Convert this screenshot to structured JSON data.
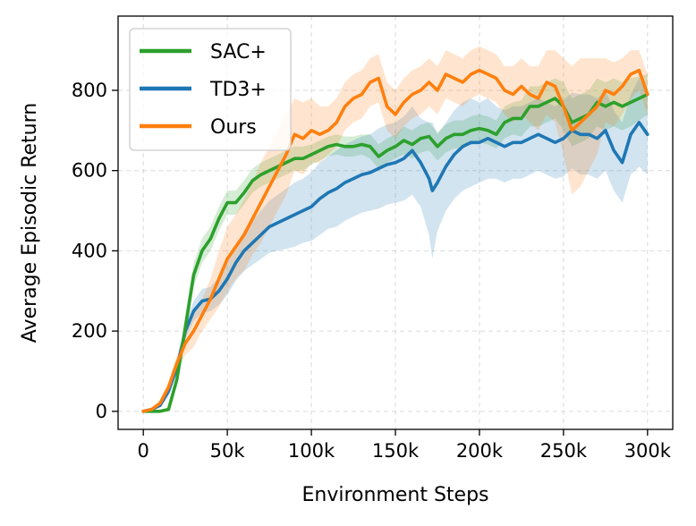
{
  "chart_data": {
    "type": "line",
    "title": "",
    "xlabel": "Environment Steps",
    "ylabel": "Average Episodic Return",
    "xlim": [
      -15000,
      315000
    ],
    "ylim": [
      -45,
      985
    ],
    "xticks": [
      0,
      50000,
      100000,
      150000,
      200000,
      250000,
      300000
    ],
    "xtick_labels": [
      "0",
      "50k",
      "100k",
      "150k",
      "200k",
      "250k",
      "300k"
    ],
    "yticks": [
      0,
      200,
      400,
      600,
      800
    ],
    "ytick_labels": [
      "0",
      "200",
      "400",
      "600",
      "800"
    ],
    "grid": true,
    "legend_position": "upper-left",
    "series": [
      {
        "name": "SAC+",
        "color": "#2ca02c",
        "x": [
          0,
          5000,
          10000,
          15000,
          20000,
          25000,
          30000,
          35000,
          40000,
          45000,
          50000,
          55000,
          60000,
          65000,
          70000,
          75000,
          80000,
          85000,
          90000,
          95000,
          100000,
          105000,
          110000,
          115000,
          120000,
          125000,
          130000,
          135000,
          140000,
          145000,
          150000,
          155000,
          160000,
          165000,
          170000,
          175000,
          180000,
          185000,
          190000,
          195000,
          200000,
          205000,
          210000,
          215000,
          220000,
          225000,
          230000,
          235000,
          240000,
          245000,
          250000,
          255000,
          260000,
          265000,
          270000,
          275000,
          280000,
          285000,
          290000,
          295000,
          300000
        ],
        "y": [
          0,
          0,
          0,
          5,
          80,
          210,
          340,
          400,
          430,
          480,
          520,
          520,
          545,
          575,
          590,
          600,
          610,
          620,
          630,
          630,
          640,
          650,
          660,
          665,
          660,
          660,
          665,
          660,
          635,
          650,
          660,
          675,
          665,
          680,
          685,
          660,
          680,
          690,
          690,
          700,
          705,
          700,
          690,
          720,
          730,
          730,
          760,
          760,
          770,
          780,
          760,
          720,
          730,
          740,
          770,
          760,
          770,
          760,
          770,
          780,
          790
        ],
        "lower": [
          0,
          0,
          0,
          2,
          65,
          180,
          310,
          370,
          400,
          450,
          490,
          490,
          515,
          545,
          560,
          570,
          580,
          590,
          600,
          600,
          615,
          625,
          635,
          640,
          635,
          635,
          640,
          630,
          605,
          620,
          630,
          640,
          630,
          645,
          650,
          625,
          645,
          655,
          655,
          665,
          670,
          665,
          655,
          680,
          690,
          685,
          710,
          710,
          720,
          730,
          700,
          660,
          670,
          680,
          710,
          700,
          710,
          700,
          710,
          725,
          740
        ],
        "upper": [
          0,
          0,
          0,
          8,
          95,
          240,
          370,
          430,
          460,
          510,
          550,
          550,
          575,
          605,
          620,
          630,
          640,
          650,
          660,
          660,
          665,
          675,
          685,
          690,
          685,
          685,
          690,
          690,
          665,
          680,
          690,
          710,
          700,
          715,
          720,
          695,
          715,
          725,
          725,
          735,
          740,
          735,
          725,
          760,
          770,
          775,
          810,
          810,
          820,
          830,
          820,
          780,
          790,
          800,
          830,
          820,
          830,
          820,
          830,
          835,
          840
        ]
      },
      {
        "name": "TD3+",
        "color": "#1f77b4",
        "x": [
          0,
          5000,
          10000,
          15000,
          20000,
          25000,
          30000,
          35000,
          40000,
          45000,
          50000,
          55000,
          60000,
          65000,
          70000,
          75000,
          80000,
          85000,
          90000,
          95000,
          100000,
          105000,
          110000,
          115000,
          120000,
          125000,
          130000,
          135000,
          140000,
          145000,
          150000,
          155000,
          160000,
          165000,
          170000,
          172000,
          175000,
          180000,
          185000,
          190000,
          195000,
          200000,
          205000,
          210000,
          215000,
          220000,
          225000,
          230000,
          235000,
          240000,
          245000,
          250000,
          255000,
          260000,
          265000,
          270000,
          275000,
          280000,
          285000,
          290000,
          295000,
          300000
        ],
        "y": [
          0,
          5,
          15,
          50,
          110,
          200,
          250,
          275,
          280,
          300,
          330,
          370,
          400,
          420,
          440,
          460,
          470,
          480,
          490,
          500,
          510,
          530,
          545,
          555,
          570,
          580,
          590,
          595,
          605,
          615,
          620,
          630,
          650,
          620,
          580,
          550,
          570,
          610,
          640,
          660,
          670,
          670,
          680,
          670,
          660,
          670,
          670,
          680,
          690,
          680,
          670,
          680,
          700,
          690,
          690,
          680,
          700,
          650,
          620,
          690,
          720,
          690
        ],
        "lower": [
          0,
          2,
          10,
          40,
          95,
          180,
          225,
          245,
          250,
          265,
          290,
          325,
          350,
          365,
          380,
          395,
          400,
          405,
          410,
          420,
          425,
          440,
          455,
          460,
          475,
          485,
          495,
          500,
          505,
          515,
          520,
          525,
          540,
          510,
          440,
          380,
          450,
          500,
          530,
          550,
          560,
          570,
          580,
          580,
          570,
          580,
          580,
          590,
          600,
          590,
          580,
          585,
          605,
          590,
          590,
          580,
          600,
          550,
          520,
          590,
          610,
          590
        ],
        "upper": [
          0,
          8,
          20,
          60,
          125,
          220,
          275,
          305,
          310,
          335,
          370,
          415,
          450,
          475,
          500,
          525,
          540,
          555,
          570,
          580,
          595,
          620,
          635,
          650,
          665,
          675,
          685,
          690,
          705,
          715,
          720,
          735,
          760,
          730,
          720,
          720,
          690,
          720,
          750,
          770,
          780,
          770,
          780,
          760,
          750,
          760,
          760,
          770,
          780,
          770,
          760,
          775,
          795,
          790,
          790,
          780,
          800,
          750,
          720,
          790,
          830,
          790
        ]
      },
      {
        "name": "Ours",
        "color": "#ff7f0e",
        "x": [
          0,
          5000,
          10000,
          15000,
          20000,
          25000,
          30000,
          35000,
          40000,
          45000,
          50000,
          55000,
          60000,
          65000,
          70000,
          75000,
          80000,
          85000,
          90000,
          95000,
          100000,
          105000,
          110000,
          115000,
          120000,
          125000,
          130000,
          135000,
          140000,
          145000,
          150000,
          155000,
          160000,
          165000,
          170000,
          175000,
          180000,
          185000,
          190000,
          195000,
          200000,
          205000,
          210000,
          215000,
          220000,
          225000,
          230000,
          235000,
          240000,
          245000,
          250000,
          255000,
          260000,
          265000,
          270000,
          275000,
          280000,
          285000,
          290000,
          295000,
          300000
        ],
        "y": [
          0,
          5,
          20,
          60,
          120,
          170,
          200,
          240,
          280,
          330,
          380,
          410,
          440,
          480,
          520,
          560,
          600,
          640,
          690,
          680,
          700,
          690,
          700,
          720,
          760,
          780,
          790,
          820,
          830,
          760,
          740,
          770,
          790,
          800,
          820,
          800,
          840,
          830,
          820,
          840,
          850,
          840,
          830,
          800,
          790,
          810,
          790,
          780,
          820,
          810,
          760,
          700,
          720,
          740,
          760,
          800,
          790,
          810,
          840,
          850,
          790
        ],
        "lower": [
          0,
          2,
          10,
          45,
          100,
          140,
          160,
          200,
          230,
          260,
          300,
          330,
          350,
          390,
          420,
          460,
          500,
          540,
          600,
          590,
          620,
          620,
          640,
          660,
          700,
          720,
          730,
          760,
          770,
          700,
          680,
          710,
          730,
          740,
          760,
          740,
          780,
          770,
          760,
          780,
          790,
          780,
          770,
          740,
          720,
          740,
          720,
          700,
          740,
          720,
          640,
          540,
          560,
          600,
          640,
          720,
          710,
          740,
          780,
          800,
          740
        ],
        "upper": [
          0,
          8,
          30,
          75,
          140,
          200,
          240,
          280,
          330,
          400,
          460,
          490,
          530,
          570,
          620,
          660,
          700,
          740,
          780,
          770,
          780,
          760,
          760,
          780,
          820,
          840,
          850,
          880,
          890,
          820,
          800,
          830,
          850,
          860,
          880,
          860,
          900,
          890,
          880,
          900,
          910,
          900,
          890,
          860,
          860,
          880,
          860,
          860,
          900,
          900,
          880,
          860,
          880,
          880,
          880,
          880,
          870,
          880,
          900,
          900,
          840
        ]
      }
    ]
  }
}
